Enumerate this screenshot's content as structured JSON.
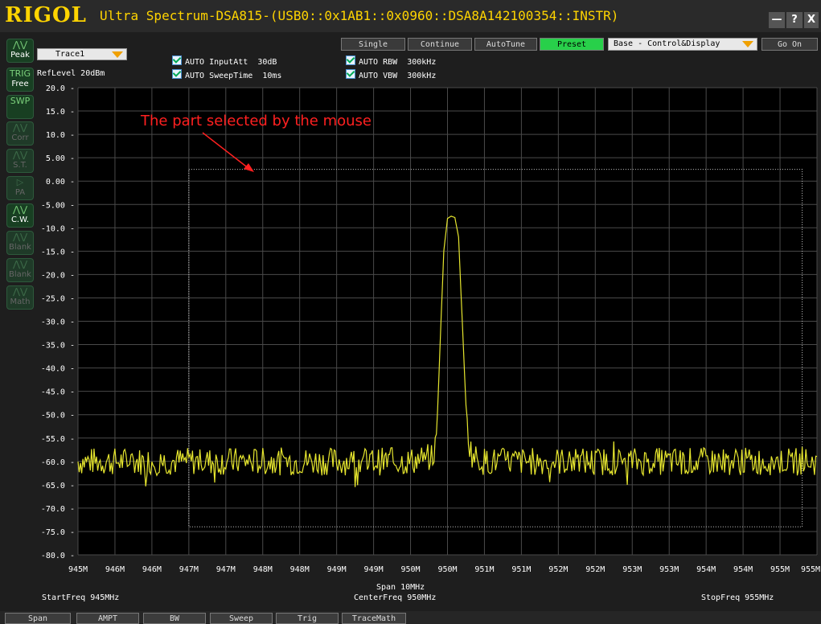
{
  "titlebar": {
    "logo": "RIGOL",
    "title": "Ultra Spectrum-DSA815-(USB0::0x1AB1::0x0960::DSA8A142100354::INSTR)",
    "min_label": "—",
    "help_label": "?",
    "close_label": "X"
  },
  "toolbar": {
    "trace_select": "Trace1",
    "single": "Single",
    "continue": "Continue",
    "autotune": "AutoTune",
    "preset": "Preset",
    "mode_select": "Base - Control&Display",
    "go_on": "Go On"
  },
  "settings": {
    "ref_level": "RefLevel  20dBm",
    "input_att_label": "AUTO InputAtt",
    "input_att_value": "30dB",
    "sweep_time_label": "AUTO SweepTime",
    "sweep_time_value": "10ms",
    "rbw_label": "AUTO RBW",
    "rbw_value": "300kHz",
    "vbw_label": "AUTO VBW",
    "vbw_value": "300kHz"
  },
  "sidebar": [
    {
      "label": "Peak",
      "icon": "peak-icon",
      "glyph": "⋀⋁"
    },
    {
      "label": "Free",
      "icon": "trig-icon",
      "glyph": "TRIG"
    },
    {
      "label": "",
      "icon": "sweep-icon",
      "glyph": "SWP"
    },
    {
      "label": "Corr",
      "icon": "corr-icon",
      "glyph": "⋀⋁"
    },
    {
      "label": "S.T.",
      "icon": "st-icon",
      "glyph": "⋀⋁"
    },
    {
      "label": "PA",
      "icon": "pa-icon",
      "glyph": "▷"
    },
    {
      "label": "C.W.",
      "icon": "cw-icon",
      "glyph": "⋀⋁"
    },
    {
      "label": "Blank",
      "icon": "blank-icon",
      "glyph": "⋀⋁"
    },
    {
      "label": "Blank",
      "icon": "blank-icon",
      "glyph": "⋀⋁"
    },
    {
      "label": "Math",
      "icon": "math-icon",
      "glyph": "⋀⋁"
    }
  ],
  "annotation": "The part selected by the mouse",
  "footer": {
    "start_freq": "StartFreq  945MHz",
    "span": "Span  10MHz",
    "center_freq": "CenterFreq  950MHz",
    "stop_freq": "StopFreq  955MHz"
  },
  "bottom_buttons": [
    "Span",
    "AMPT",
    "BW",
    "Sweep",
    "Trig",
    "TraceMath"
  ],
  "colors": {
    "trace": "#e6e62e",
    "annotation": "#ff2020",
    "logo": "#ffd400",
    "preset": "#28d04a"
  },
  "chart_data": {
    "type": "line",
    "y_tick_labels": [
      "20.0",
      "15.0",
      "10.0",
      "5.00",
      "0.00",
      "-5.00",
      "-10.0",
      "-15.0",
      "-20.0",
      "-25.0",
      "-30.0",
      "-35.0",
      "-40.0",
      "-45.0",
      "-50.0",
      "-55.0",
      "-60.0",
      "-65.0",
      "-70.0",
      "-75.0",
      "-80.0"
    ],
    "x_tick_labels": [
      "945M",
      "946M",
      "946M",
      "947M",
      "947M",
      "948M",
      "948M",
      "949M",
      "949M",
      "950M",
      "950M",
      "951M",
      "951M",
      "952M",
      "952M",
      "953M",
      "953M",
      "954M",
      "954M",
      "955M",
      "955M"
    ],
    "ylim": [
      -80,
      20
    ],
    "xlim": [
      945,
      955
    ],
    "grid": true,
    "selection_box": {
      "x": [
        946.5,
        954.8
      ],
      "y": [
        2.5,
        -74
      ]
    },
    "series": [
      {
        "x": [
          945.0,
          945.5,
          946.0,
          946.5,
          947.0,
          947.5,
          948.0,
          948.5,
          949.0,
          949.5,
          949.8,
          949.85,
          949.9,
          949.95,
          950.0,
          950.05,
          950.1,
          950.15,
          950.2,
          950.25,
          950.3,
          950.35,
          950.5,
          951.0,
          951.5,
          952.0,
          952.5,
          953.0,
          953.5,
          954.0,
          954.5,
          955.0
        ],
        "values": [
          -60,
          -60,
          -60,
          -60,
          -60,
          -60,
          -60,
          -60,
          -60,
          -60,
          -59,
          -56,
          -35,
          -15,
          -8,
          -7.5,
          -7.8,
          -12,
          -30,
          -48,
          -57,
          -59,
          -60,
          -60,
          -60,
          -60,
          -60,
          -60,
          -60,
          -60,
          -60,
          -60
        ]
      }
    ]
  }
}
